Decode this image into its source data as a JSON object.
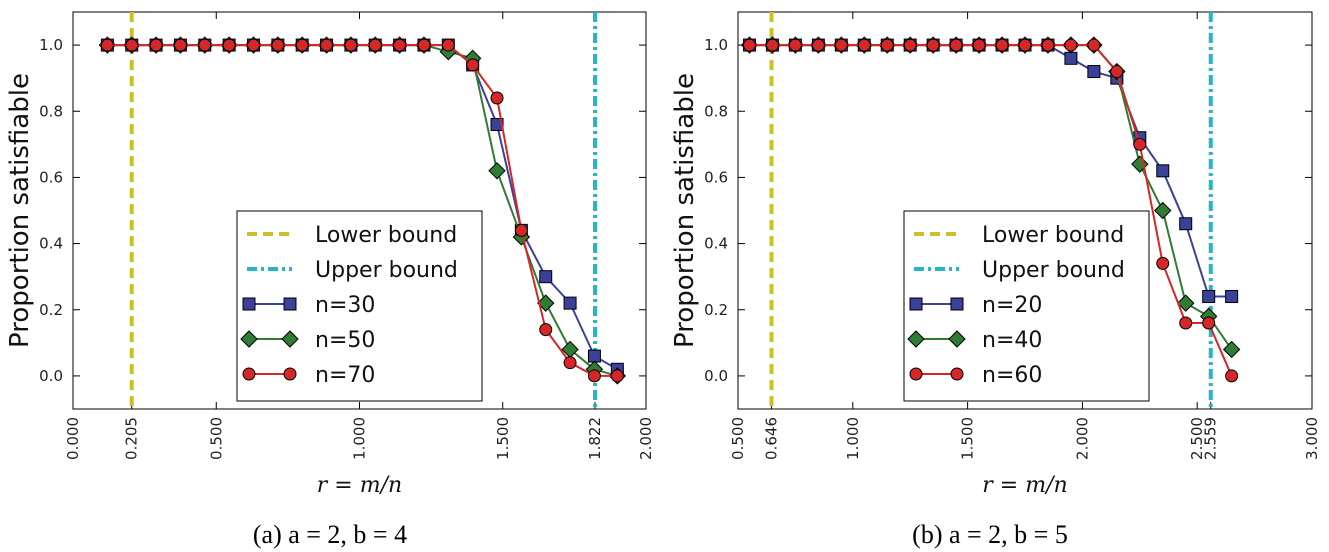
{
  "chart_data": [
    {
      "type": "line",
      "caption": "(a) a = 2, b = 4",
      "xlabel": "r = m/n",
      "ylabel": "Proportion satisfiable",
      "xlim": [
        0.0,
        2.0
      ],
      "ylim": [
        -0.1,
        1.1
      ],
      "xticks": [
        0.0,
        0.205,
        0.5,
        1.0,
        1.5,
        1.822,
        2.0
      ],
      "xtick_labels": [
        "0.000",
        "0.205",
        "0.500",
        "1.000",
        "1.500",
        "1.822",
        "2.000"
      ],
      "yticks": [
        0.0,
        0.2,
        0.4,
        0.6,
        0.8,
        1.0
      ],
      "ytick_labels": [
        "0.0",
        "0.2",
        "0.4",
        "0.6",
        "0.8",
        "1.0"
      ],
      "lower_bound": 0.205,
      "upper_bound": 1.822,
      "legend": {
        "position": "lower-center",
        "lower_label": "Lower bound",
        "upper_label": "Upper bound"
      },
      "series": [
        {
          "name": "n=30",
          "marker": "square",
          "color": "#3a4199",
          "x": [
            0.12,
            0.205,
            0.29,
            0.375,
            0.46,
            0.545,
            0.63,
            0.715,
            0.8,
            0.885,
            0.97,
            1.055,
            1.14,
            1.225,
            1.31,
            1.395,
            1.48,
            1.565,
            1.65,
            1.735,
            1.82,
            1.9
          ],
          "y": [
            1,
            1,
            1,
            1,
            1,
            1,
            1,
            1,
            1,
            1,
            1,
            1,
            1,
            1,
            1,
            0.94,
            0.76,
            0.44,
            0.3,
            0.22,
            0.06,
            0.02
          ]
        },
        {
          "name": "n=50",
          "marker": "diamond",
          "color": "#2f7c34",
          "x": [
            0.12,
            0.205,
            0.29,
            0.375,
            0.46,
            0.545,
            0.63,
            0.715,
            0.8,
            0.885,
            0.97,
            1.055,
            1.14,
            1.225,
            1.31,
            1.395,
            1.48,
            1.565,
            1.65,
            1.735,
            1.82,
            1.9
          ],
          "y": [
            1,
            1,
            1,
            1,
            1,
            1,
            1,
            1,
            1,
            1,
            1,
            1,
            1,
            1,
            0.98,
            0.96,
            0.62,
            0.42,
            0.22,
            0.08,
            0.02,
            0.0
          ]
        },
        {
          "name": "n=70",
          "marker": "circle",
          "color": "#d62728",
          "x": [
            0.12,
            0.205,
            0.29,
            0.375,
            0.46,
            0.545,
            0.63,
            0.715,
            0.8,
            0.885,
            0.97,
            1.055,
            1.14,
            1.225,
            1.31,
            1.395,
            1.48,
            1.565,
            1.65,
            1.735,
            1.82,
            1.9
          ],
          "y": [
            1,
            1,
            1,
            1,
            1,
            1,
            1,
            1,
            1,
            1,
            1,
            1,
            1,
            1,
            1,
            0.94,
            0.84,
            0.44,
            0.14,
            0.04,
            0.0,
            0.0
          ]
        }
      ]
    },
    {
      "type": "line",
      "caption": "(b) a = 2, b = 5",
      "xlabel": "r = m/n",
      "ylabel": "Proportion satisfiable",
      "xlim": [
        0.5,
        3.0
      ],
      "ylim": [
        -0.1,
        1.1
      ],
      "xticks": [
        0.5,
        0.646,
        1.0,
        1.5,
        2.0,
        2.5,
        2.559,
        3.0
      ],
      "xtick_labels": [
        "0.500",
        "0.646",
        "1.000",
        "1.500",
        "2.000",
        "2.500",
        "2.559",
        "3.000"
      ],
      "yticks": [
        0.0,
        0.2,
        0.4,
        0.6,
        0.8,
        1.0
      ],
      "ytick_labels": [
        "0.0",
        "0.2",
        "0.4",
        "0.6",
        "0.8",
        "1.0"
      ],
      "lower_bound": 0.646,
      "upper_bound": 2.559,
      "legend": {
        "position": "lower-center",
        "lower_label": "Lower bound",
        "upper_label": "Upper bound"
      },
      "series": [
        {
          "name": "n=20",
          "marker": "square",
          "color": "#3a4199",
          "x": [
            0.55,
            0.65,
            0.75,
            0.85,
            0.95,
            1.05,
            1.15,
            1.25,
            1.35,
            1.45,
            1.55,
            1.65,
            1.75,
            1.85,
            1.95,
            2.05,
            2.15,
            2.25,
            2.35,
            2.45,
            2.55,
            2.65
          ],
          "y": [
            1,
            1,
            1,
            1,
            1,
            1,
            1,
            1,
            1,
            1,
            1,
            1,
            1,
            1,
            0.96,
            0.92,
            0.9,
            0.72,
            0.62,
            0.46,
            0.24,
            0.24
          ]
        },
        {
          "name": "n=40",
          "marker": "diamond",
          "color": "#2f7c34",
          "x": [
            0.55,
            0.65,
            0.75,
            0.85,
            0.95,
            1.05,
            1.15,
            1.25,
            1.35,
            1.45,
            1.55,
            1.65,
            1.75,
            1.85,
            1.95,
            2.05,
            2.15,
            2.25,
            2.35,
            2.45,
            2.55,
            2.65
          ],
          "y": [
            1,
            1,
            1,
            1,
            1,
            1,
            1,
            1,
            1,
            1,
            1,
            1,
            1,
            1,
            1,
            1,
            0.92,
            0.64,
            0.5,
            0.22,
            0.18,
            0.08
          ]
        },
        {
          "name": "n=60",
          "marker": "circle",
          "color": "#d62728",
          "x": [
            0.55,
            0.65,
            0.75,
            0.85,
            0.95,
            1.05,
            1.15,
            1.25,
            1.35,
            1.45,
            1.55,
            1.65,
            1.75,
            1.85,
            1.95,
            2.05,
            2.15,
            2.25,
            2.35,
            2.45,
            2.55,
            2.65
          ],
          "y": [
            1,
            1,
            1,
            1,
            1,
            1,
            1,
            1,
            1,
            1,
            1,
            1,
            1,
            1,
            1,
            1,
            0.92,
            0.7,
            0.34,
            0.16,
            0.16,
            0.0
          ]
        }
      ]
    }
  ],
  "colors": {
    "lower_bound": "#c9c02a",
    "upper_bound": "#26b5c2"
  }
}
